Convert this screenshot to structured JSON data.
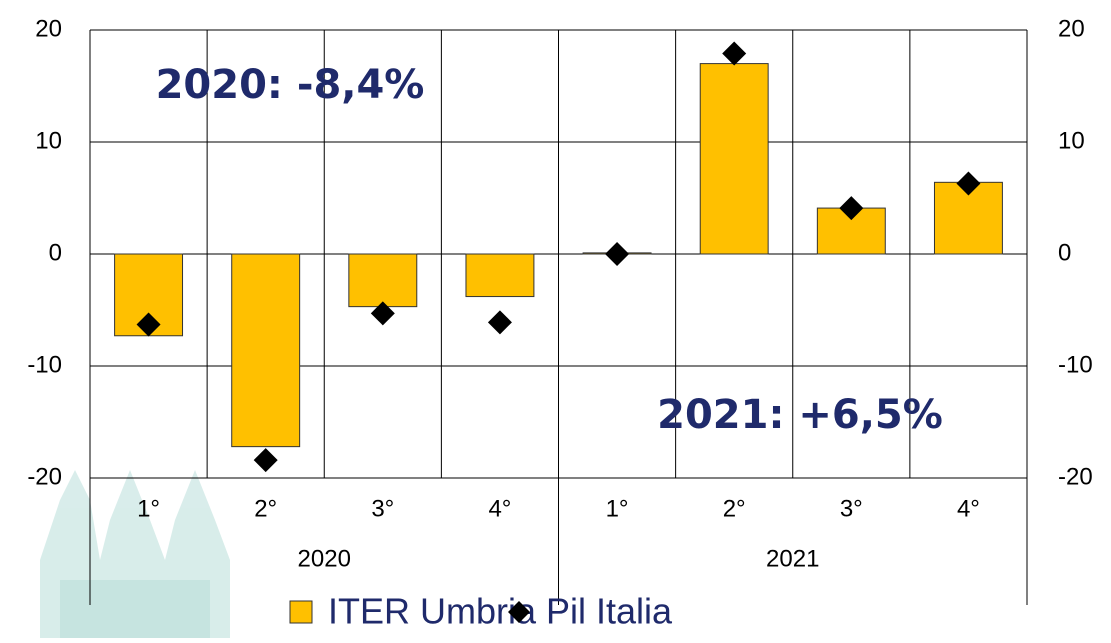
{
  "chart_data": {
    "type": "bar",
    "categories": [
      "1°",
      "2°",
      "3°",
      "4°",
      "1°",
      "2°",
      "3°",
      "4°"
    ],
    "x_groups": [
      "2020",
      "2021"
    ],
    "series": [
      {
        "name": "ITER Umbria",
        "type": "bar",
        "color": "#ffc000",
        "values": [
          -7.3,
          -17.2,
          -4.7,
          -3.8,
          0.1,
          17.0,
          4.1,
          6.4
        ]
      },
      {
        "name": "Pil Italia",
        "type": "scatter",
        "color": "#000000",
        "values": [
          -6.3,
          -18.4,
          -5.3,
          -6.1,
          0.0,
          17.9,
          4.1,
          6.3
        ]
      }
    ],
    "ylim": [
      -20,
      20
    ],
    "yticks": [
      -20,
      -10,
      0,
      10,
      20
    ],
    "y2lim": [
      -20,
      20
    ],
    "y2ticks": [
      -20,
      -10,
      0,
      10,
      20
    ],
    "grid": true,
    "annotations": [
      "2020: -8,4%",
      "2021: +6,5%"
    ],
    "legend": "bottom"
  }
}
